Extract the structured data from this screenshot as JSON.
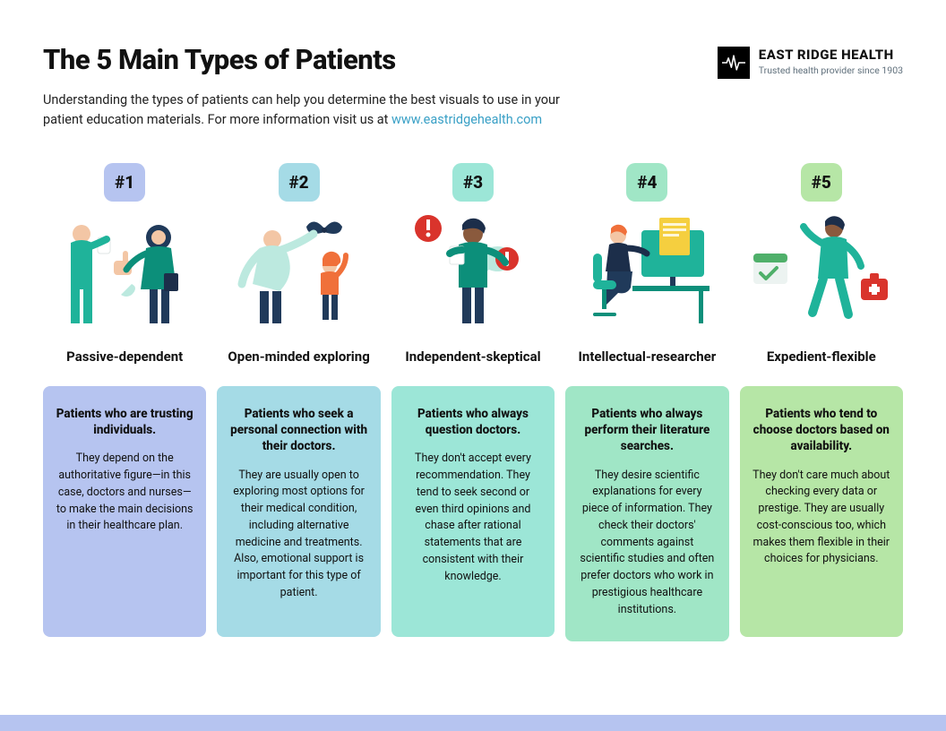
{
  "header": {
    "title": "The 5 Main Types of Patients",
    "subtitle_pre": "Understanding the types of patients can help you determine the best visuals to use in your patient education materials. For more information visit us at ",
    "subtitle_link": "www.eastridgehealth.com"
  },
  "brand": {
    "name": "EAST RIDGE HEALTH",
    "tagline": "Trusted health provider since 1903",
    "logo_bg": "#000000",
    "logo_stroke": "#ffffff"
  },
  "palette": {
    "link_color": "#39a0c6",
    "footer_bar": "#b6c4f0"
  },
  "cards": [
    {
      "num": "#1",
      "title": "Passive-dependent",
      "badge_bg": "#b6c4f0",
      "box_bg": "#b6c4f0",
      "illus": "doctor-patient",
      "head": "Patients who are trusting individuals.",
      "body": "They depend on the authoritative figure—in this case, doctors and nurses—to make the main decisions in their healthcare plan."
    },
    {
      "num": "#2",
      "title": "Open-minded exploring",
      "badge_bg": "#a5dbe6",
      "box_bg": "#a5dbe6",
      "illus": "butterfly-play",
      "head": "Patients who seek a personal connection with their doctors.",
      "body": "They are usually open to exploring most options for their medical condition, including alternative medicine and treatments. Also, emotional support is important for this type of patient."
    },
    {
      "num": "#3",
      "title": "Independent-skeptical",
      "badge_bg": "#9ce6d7",
      "box_bg": "#9ce6d7",
      "illus": "question-alert",
      "head": "Patients who always question doctors.",
      "body": "They don't accept every recommendation. They tend to seek second or even third opinions and chase after rational statements that are consistent with their knowledge."
    },
    {
      "num": "#4",
      "title": "Intellectual-researcher",
      "badge_bg": "#a0e6c6",
      "box_bg": "#a0e6c6",
      "illus": "desk-research",
      "head": "Patients who always perform their literature searches.",
      "body": "They desire scientific explanations for every piece of information. They check their doctors' comments against scientific studies and often prefer doctors who work in prestigious healthcare institutions."
    },
    {
      "num": "#5",
      "title": "Expedient-flexible",
      "badge_bg": "#b6e6a6",
      "box_bg": "#b6e6a6",
      "illus": "rush-kit",
      "head": "Patients who tend to choose doctors based on availability.",
      "body": "They don't care much about checking every data or prestige. They are usually cost-conscious too, which makes them flexible in their choices for physicians."
    }
  ],
  "illus_palette": {
    "teal": "#1fb39a",
    "teal_dark": "#0c8f7a",
    "mint": "#bce9df",
    "navy": "#203a5a",
    "navy2": "#1c2e4a",
    "skin1": "#f3c6a5",
    "skin2": "#8a5a3d",
    "orange": "#f0703a",
    "red": "#d9342c",
    "yellow": "#f5cf3f",
    "screen": "#1fb39a",
    "doc": "#f5cf3f",
    "green": "#4fb06a",
    "paper": "#ecf3f1"
  }
}
